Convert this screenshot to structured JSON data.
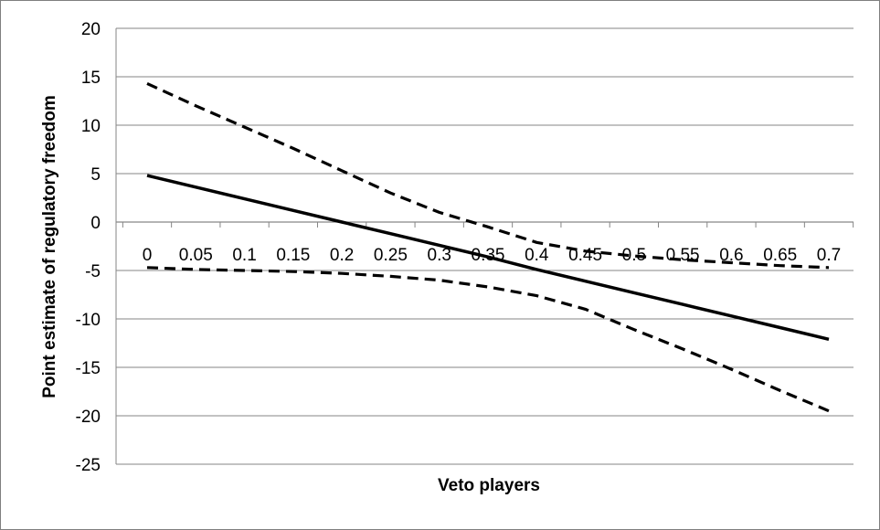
{
  "chart_data": {
    "type": "line",
    "title": "",
    "xlabel": "Veto players",
    "ylabel": "Point estimate of regulatory freedom",
    "xlim": [
      0,
      0.7
    ],
    "ylim": [
      -25,
      20
    ],
    "x_ticks": [
      "0",
      "0.05",
      "0.1",
      "0.15",
      "0.2",
      "0.25",
      "0.3",
      "0.35",
      "0.4",
      "0.45",
      "0.5",
      "0.55",
      "0.6",
      "0.65",
      "0.7"
    ],
    "y_ticks": [
      "20",
      "15",
      "10",
      "5",
      "0",
      "-5",
      "-10",
      "-15",
      "-20",
      "-25"
    ],
    "grid": "horizontal",
    "legend": "none",
    "x": [
      0,
      0.05,
      0.1,
      0.15,
      0.2,
      0.25,
      0.3,
      0.35,
      0.4,
      0.45,
      0.5,
      0.55,
      0.6,
      0.65,
      0.7
    ],
    "series": [
      {
        "style": "solid",
        "values": [
          4.8,
          3.6,
          2.4,
          1.2,
          0.0,
          -1.2,
          -2.4,
          -3.6,
          -4.9,
          -6.1,
          -7.3,
          -8.5,
          -9.7,
          -10.9,
          -12.1
        ]
      },
      {
        "style": "dashed",
        "values": [
          14.3,
          12.0,
          9.8,
          7.6,
          5.3,
          3.0,
          1.0,
          -0.5,
          -2.1,
          -3.0,
          -3.5,
          -3.9,
          -4.2,
          -4.5,
          -4.7
        ]
      },
      {
        "style": "dashed",
        "values": [
          -4.7,
          -4.9,
          -5.0,
          -5.1,
          -5.3,
          -5.6,
          -6.0,
          -6.7,
          -7.6,
          -9.0,
          -11.1,
          -13.1,
          -15.2,
          -17.4,
          -19.5
        ]
      }
    ],
    "colors": {
      "line": "#000000",
      "grid": "#868686",
      "frame": "#7f7f7f"
    }
  }
}
